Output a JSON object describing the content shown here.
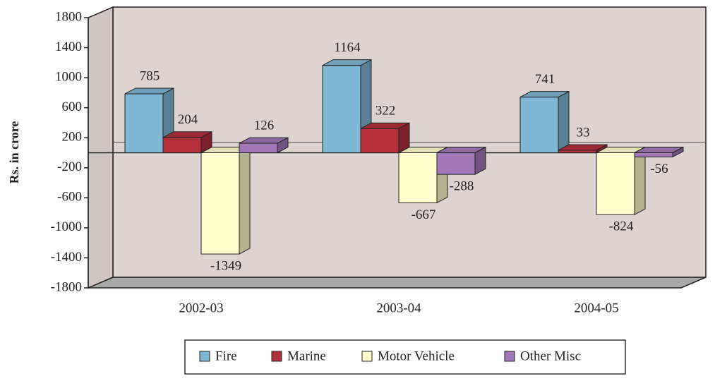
{
  "chart_data": {
    "type": "bar3d",
    "y_axis_label": "Rs. in crore",
    "categories": [
      "2002-03",
      "2003-04",
      "2004-05"
    ],
    "series": [
      {
        "name": "Fire",
        "color": "#7fb6d4",
        "values": [
          785,
          1164,
          741
        ]
      },
      {
        "name": "Marine",
        "color": "#b3303c",
        "values": [
          204,
          322,
          33
        ]
      },
      {
        "name": "Motor Vehicle",
        "color": "#ffffcc",
        "values": [
          -1349,
          -667,
          -824
        ]
      },
      {
        "name": "Other Misc",
        "color": "#a377b8",
        "values": [
          126,
          -288,
          -56
        ]
      }
    ],
    "ylim": [
      -1800,
      1800
    ],
    "yticks": [
      -1800,
      -1400,
      -1000,
      -600,
      -200,
      200,
      600,
      1000,
      1400,
      1800
    ],
    "legend": "bottom"
  }
}
